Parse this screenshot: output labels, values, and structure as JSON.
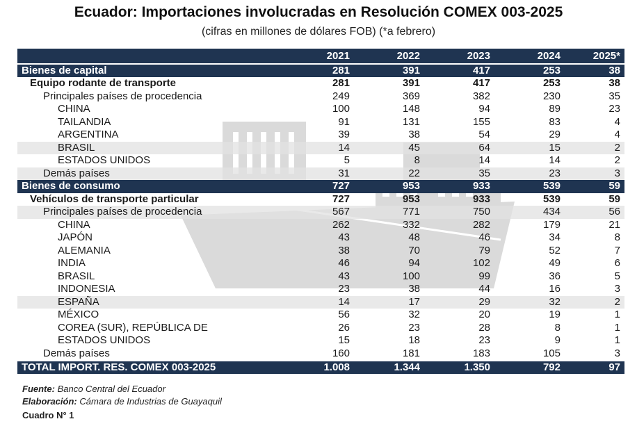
{
  "title": "Ecuador: Importaciones involucradas en Resolución COMEX 003-2025",
  "subtitle": "(cifras en millones de dólares FOB) (*a febrero)",
  "chart_data": {
    "type": "table",
    "columns": [
      "2021",
      "2022",
      "2023",
      "2024",
      "2025*"
    ],
    "rows": [
      {
        "label": "Bienes de capital",
        "level": "section",
        "values": [
          "281",
          "391",
          "417",
          "253",
          "38"
        ]
      },
      {
        "label": "Equipo rodante de transporte",
        "level": "sub",
        "values": [
          "281",
          "391",
          "417",
          "253",
          "38"
        ]
      },
      {
        "label": "Principales países de procedencia",
        "level": "princ",
        "values": [
          "249",
          "369",
          "382",
          "230",
          "35"
        ]
      },
      {
        "label": "CHINA",
        "level": "country",
        "values": [
          "100",
          "148",
          "94",
          "89",
          "23"
        ]
      },
      {
        "label": "TAILANDIA",
        "level": "country",
        "values": [
          "91",
          "131",
          "155",
          "83",
          "4"
        ]
      },
      {
        "label": "ARGENTINA",
        "level": "country",
        "values": [
          "39",
          "38",
          "54",
          "29",
          "4"
        ]
      },
      {
        "label": "BRASIL",
        "level": "country",
        "values": [
          "14",
          "45",
          "64",
          "15",
          "2"
        ]
      },
      {
        "label": "ESTADOS UNIDOS",
        "level": "country",
        "values": [
          "5",
          "8",
          "14",
          "14",
          "2"
        ]
      },
      {
        "label": "Demás países",
        "level": "demas",
        "values": [
          "31",
          "22",
          "35",
          "23",
          "3"
        ]
      },
      {
        "label": "Bienes de consumo",
        "level": "section",
        "values": [
          "727",
          "953",
          "933",
          "539",
          "59"
        ]
      },
      {
        "label": "Vehículos de transporte particular",
        "level": "sub",
        "values": [
          "727",
          "953",
          "933",
          "539",
          "59"
        ]
      },
      {
        "label": "Principales países de procedencia",
        "level": "princ",
        "values": [
          "567",
          "771",
          "750",
          "434",
          "56"
        ]
      },
      {
        "label": "CHINA",
        "level": "country",
        "values": [
          "262",
          "332",
          "282",
          "179",
          "21"
        ]
      },
      {
        "label": "JAPÓN",
        "level": "country",
        "values": [
          "43",
          "48",
          "46",
          "34",
          "8"
        ]
      },
      {
        "label": "ALEMANIA",
        "level": "country",
        "values": [
          "38",
          "70",
          "79",
          "52",
          "7"
        ]
      },
      {
        "label": "INDIA",
        "level": "country",
        "values": [
          "46",
          "94",
          "102",
          "49",
          "6"
        ]
      },
      {
        "label": "BRASIL",
        "level": "country",
        "values": [
          "43",
          "100",
          "99",
          "36",
          "5"
        ]
      },
      {
        "label": "INDONESIA",
        "level": "country",
        "values": [
          "23",
          "38",
          "44",
          "16",
          "3"
        ]
      },
      {
        "label": "ESPAÑA",
        "level": "country",
        "values": [
          "14",
          "17",
          "29",
          "32",
          "2"
        ]
      },
      {
        "label": "MÉXICO",
        "level": "country",
        "values": [
          "56",
          "32",
          "20",
          "19",
          "1"
        ]
      },
      {
        "label": "COREA (SUR), REPÚBLICA DE",
        "level": "country",
        "values": [
          "26",
          "23",
          "28",
          "8",
          "1"
        ]
      },
      {
        "label": "ESTADOS UNIDOS",
        "level": "country",
        "values": [
          "15",
          "18",
          "23",
          "9",
          "1"
        ]
      },
      {
        "label": "Demás países",
        "level": "demas",
        "values": [
          "160",
          "181",
          "183",
          "105",
          "3"
        ]
      },
      {
        "label": "TOTAL IMPORT. RES. COMEX 003-2025",
        "level": "total",
        "values": [
          "1.008",
          "1.344",
          "1.350",
          "792",
          "97"
        ]
      }
    ]
  },
  "footer": {
    "fuente_label": "Fuente:",
    "fuente_text": "Banco Central del Ecuador",
    "elaboracion_label": "Elaboración:",
    "elaboracion_text": "Cámara de Industrias de Guayaquil",
    "cuadro": "Cuadro N° 1"
  },
  "colors": {
    "header_bg": "#1f3451",
    "stripe_bg": "#e1e1e1"
  }
}
